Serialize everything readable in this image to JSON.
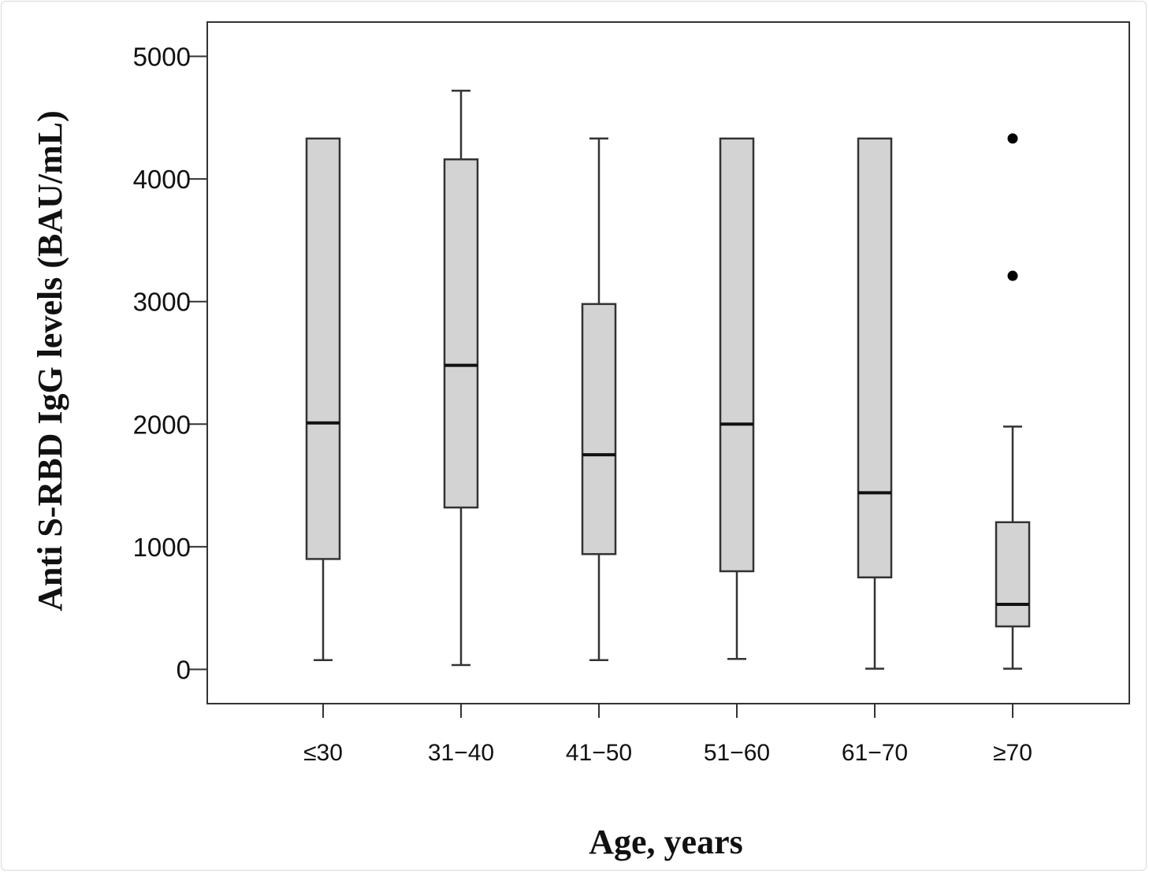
{
  "chart_data": {
    "type": "box",
    "xlabel": "Age, years",
    "ylabel": "Anti S-RBD IgG levels (BAU/mL)",
    "ylim": [
      -280,
      5280
    ],
    "yticks": [
      0,
      1000,
      2000,
      3000,
      4000,
      5000
    ],
    "categories": [
      "≤30",
      "31−40",
      "41−50",
      "51−60",
      "61−70",
      "≥70"
    ],
    "boxes": [
      {
        "category": "≤30",
        "whisker_low": 75,
        "q1": 900,
        "median": 2010,
        "q3": 4330,
        "whisker_high": 4330,
        "outliers": []
      },
      {
        "category": "31−40",
        "whisker_low": 35,
        "q1": 1320,
        "median": 2480,
        "q3": 4160,
        "whisker_high": 4720,
        "outliers": []
      },
      {
        "category": "41−50",
        "whisker_low": 75,
        "q1": 940,
        "median": 1750,
        "q3": 2980,
        "whisker_high": 4330,
        "outliers": []
      },
      {
        "category": "51−60",
        "whisker_low": 85,
        "q1": 800,
        "median": 2000,
        "q3": 4330,
        "whisker_high": 4330,
        "outliers": []
      },
      {
        "category": "61−70",
        "whisker_low": 5,
        "q1": 750,
        "median": 1440,
        "q3": 4330,
        "whisker_high": 4330,
        "outliers": []
      },
      {
        "category": "≥70",
        "whisker_low": 5,
        "q1": 350,
        "median": 530,
        "q3": 1200,
        "whisker_high": 1980,
        "outliers": [
          4330,
          3210
        ]
      }
    ],
    "colors": {
      "box_fill": "#d3d3d3",
      "box_stroke": "#333333",
      "median": "#111111",
      "outlier": "#000000"
    },
    "grid": false,
    "legend": "none"
  }
}
